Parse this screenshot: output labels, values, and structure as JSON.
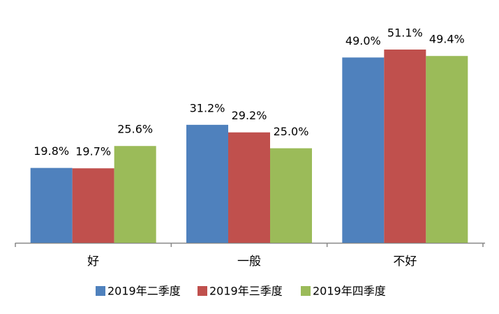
{
  "chart_data": {
    "type": "bar",
    "categories": [
      "好",
      "一般",
      "不好"
    ],
    "series": [
      {
        "name": "2019年二季度",
        "color": "#4f81bd",
        "values": [
          19.8,
          31.2,
          49.0
        ],
        "value_labels": [
          "19.8%",
          "31.2%",
          "49.0%"
        ]
      },
      {
        "name": "2019年三季度",
        "color": "#c0504d",
        "values": [
          19.7,
          29.2,
          51.1
        ],
        "value_labels": [
          "19.7%",
          "29.2%",
          "51.1%"
        ]
      },
      {
        "name": "2019年四季度",
        "color": "#9bbb59",
        "values": [
          25.6,
          25.0,
          49.4
        ],
        "value_labels": [
          "25.6%",
          "25.0%",
          "49.4%"
        ]
      }
    ],
    "legend": "bottom"
  }
}
